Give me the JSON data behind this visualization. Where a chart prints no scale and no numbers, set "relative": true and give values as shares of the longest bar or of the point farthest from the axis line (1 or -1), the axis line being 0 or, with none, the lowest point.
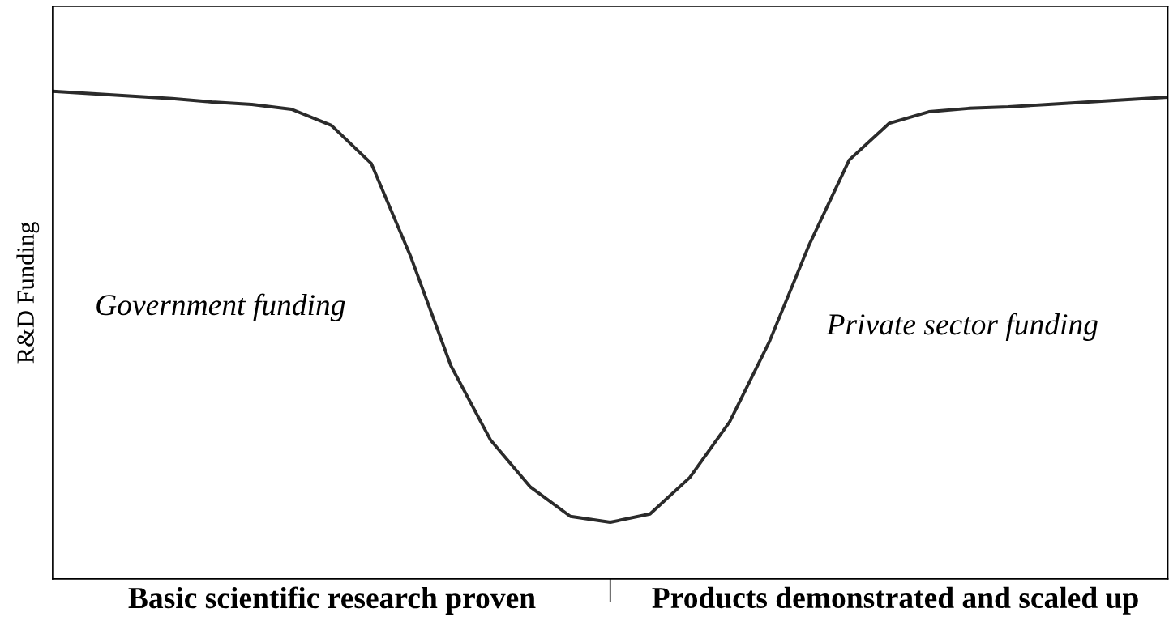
{
  "chart_data": {
    "type": "line",
    "relative": true,
    "ylabel": "R&D Funding",
    "categories": [
      null,
      null,
      null,
      null,
      null,
      null,
      null,
      null,
      null,
      null,
      null,
      null,
      null,
      null,
      null,
      null,
      null,
      null,
      null,
      null,
      null,
      null,
      null,
      null,
      null,
      null,
      null,
      null,
      null
    ],
    "series": [
      {
        "color": "#2b2b2b",
        "values": [
          1.0,
          0.995,
          0.99,
          0.985,
          0.978,
          0.973,
          0.963,
          0.93,
          0.852,
          0.659,
          0.437,
          0.284,
          0.188,
          0.128,
          0.116,
          0.133,
          0.208,
          0.322,
          0.487,
          0.686,
          0.859,
          0.934,
          0.958,
          0.965,
          0.968,
          0.973,
          0.978,
          0.983,
          0.988
        ]
      }
    ],
    "annotations": [
      "Government funding",
      "Private sector funding",
      "Basic scientific research proven",
      "Products demonstrated and scaled up"
    ],
    "grid": false,
    "legend": false,
    "marker": "none",
    "line_style": "solid"
  }
}
